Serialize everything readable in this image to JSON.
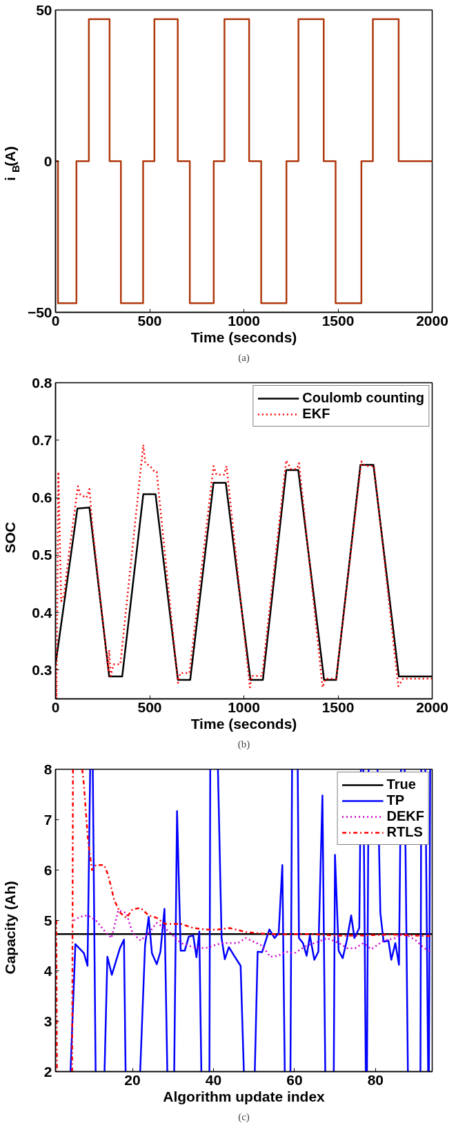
{
  "chart_data": [
    {
      "type": "line",
      "xlabel": "Time (seconds)",
      "ylabel": "i$_{B}$(A)",
      "annotations": [
        "(a)"
      ],
      "xlim": [
        0,
        2000
      ],
      "ylim": [
        -50,
        50
      ],
      "xticks": [
        0,
        500,
        1000,
        1500,
        2000
      ],
      "yticks": [
        -50,
        0,
        50
      ],
      "grid": false,
      "legend": false,
      "series": [
        {
          "color": "#b0380c",
          "line_style": "solid",
          "x": [
            0,
            13,
            13,
            111,
            111,
            177,
            177,
            287,
            287,
            347,
            347,
            465,
            465,
            525,
            525,
            649,
            649,
            713,
            713,
            840,
            840,
            897,
            897,
            1028,
            1028,
            1092,
            1092,
            1226,
            1226,
            1290,
            1290,
            1424,
            1424,
            1487,
            1487,
            1624,
            1624,
            1685,
            1685,
            1822,
            1822,
            2000
          ],
          "values": [
            0,
            0,
            -47,
            -47,
            0,
            0,
            47,
            47,
            0,
            0,
            -47,
            -47,
            0,
            0,
            47,
            47,
            0,
            0,
            -47,
            -47,
            0,
            0,
            47,
            47,
            0,
            0,
            -47,
            -47,
            0,
            0,
            47,
            47,
            0,
            0,
            -47,
            -47,
            0,
            0,
            47,
            47,
            0,
            0
          ]
        }
      ]
    },
    {
      "type": "line",
      "xlabel": "Time (seconds)",
      "ylabel": "SOC",
      "annotations": [
        "(b)"
      ],
      "xlim": [
        0,
        2000
      ],
      "ylim": [
        0.25,
        0.8
      ],
      "xticks": [
        0,
        500,
        1000,
        1500,
        2000
      ],
      "yticks": [
        0.3,
        0.4,
        0.5,
        0.6,
        0.7,
        0.8
      ],
      "grid": false,
      "legend": "top right",
      "series": [
        {
          "name": "Coulomb counting",
          "color": "#000000",
          "line_style": "solid",
          "x": [
            0,
            116,
            180,
            285,
            354,
            466,
            531,
            650,
            715,
            839,
            904,
            1035,
            1101,
            1225,
            1289,
            1426,
            1490,
            1619,
            1688,
            1823,
            2000
          ],
          "values": [
            0.31,
            0.581,
            0.583,
            0.289,
            0.289,
            0.606,
            0.606,
            0.283,
            0.283,
            0.626,
            0.626,
            0.283,
            0.283,
            0.648,
            0.648,
            0.283,
            0.283,
            0.657,
            0.657,
            0.289,
            0.289
          ]
        },
        {
          "name": "EKF",
          "color": "#ff0000",
          "line_style": "dotted",
          "x": [
            0,
            5,
            15,
            30,
            45,
            70,
            119,
            132,
            164,
            180,
            196,
            280,
            285,
            293,
            309,
            344,
            466,
            477,
            502,
            526,
            537,
            650,
            662,
            711,
            839,
            855,
            895,
            908,
            1032,
            1042,
            1097,
            1225,
            1250,
            1281,
            1293,
            1418,
            1434,
            1490,
            1624,
            1643,
            1691,
            1820,
            1845,
            2000
          ],
          "values": [
            0.3,
            0.25,
            0.645,
            0.42,
            0.43,
            0.5,
            0.62,
            0.605,
            0.6,
            0.615,
            0.55,
            0.3,
            0.335,
            0.29,
            0.31,
            0.31,
            0.692,
            0.66,
            0.655,
            0.645,
            0.645,
            0.278,
            0.295,
            0.295,
            0.655,
            0.64,
            0.64,
            0.655,
            0.27,
            0.29,
            0.29,
            0.665,
            0.65,
            0.65,
            0.66,
            0.27,
            0.285,
            0.285,
            0.663,
            0.655,
            0.655,
            0.272,
            0.285,
            0.285
          ]
        }
      ]
    },
    {
      "type": "line",
      "xlabel": "Algorithm update index",
      "ylabel": "Capacity (Ah)",
      "annotations": [
        "(c)"
      ],
      "xlim": [
        1,
        94
      ],
      "ylim": [
        2,
        8
      ],
      "xticks": [
        20,
        40,
        60,
        80
      ],
      "yticks": [
        2,
        3,
        4,
        5,
        6,
        7,
        8
      ],
      "grid": false,
      "legend": "top right",
      "series": [
        {
          "name": "True",
          "color": "#000000",
          "line_style": "solid",
          "x": [
            1,
            94
          ],
          "values": [
            4.73,
            4.73
          ]
        },
        {
          "name": "TP",
          "color": "#0000ff",
          "line_style": "solid",
          "x": [
            4.7,
            5.9,
            8.0,
            8.9,
            9.55,
            null,
            10.2,
            10.9,
            null,
            13.1,
            13.8,
            14.9,
            16.9,
            17.9,
            18.3,
            null,
            21.9,
            23.1,
            24.0,
            24.8,
            26.0,
            26.9,
            27.9,
            28.6,
            null,
            30.3,
            31.0,
            31.9,
            32.9,
            33.9,
            35.0,
            35.8,
            36.5,
            37.0,
            null,
            39.0,
            39.2,
            null,
            41.1,
            42.0,
            42.8,
            43.8,
            45.1,
            46.7,
            47.5,
            null,
            50.2,
            50.9,
            52.0,
            53.8,
            55.1,
            56.1,
            57.0,
            57.6,
            null,
            59.0,
            59.4,
            null,
            60.8,
            61.1,
            62.1,
            63.0,
            63.8,
            64.9,
            65.9,
            66.9,
            67.6,
            null,
            69.7,
            70.0,
            70.9,
            71.9,
            72.9,
            74.0,
            74.8,
            76.0,
            76.4,
            null,
            77.0,
            77.6,
            null,
            77.9,
            78.3,
            null,
            80.5,
            81.2,
            82.0,
            83.2,
            83.9,
            84.9,
            85.8,
            86.3,
            null,
            87.2,
            88.0,
            null,
            91.1,
            91.3,
            null,
            92.3,
            93.0,
            null,
            93.2,
            93.5
          ],
          "values": [
            2,
            4.53,
            4.35,
            4.1,
            8,
            null,
            8,
            2,
            null,
            2,
            4.28,
            3.92,
            4.45,
            4.62,
            2,
            null,
            2,
            4.5,
            5.07,
            4.35,
            4.13,
            4.38,
            5.23,
            2,
            null,
            2,
            7.17,
            4.4,
            4.4,
            4.68,
            4.7,
            4.27,
            4.78,
            2,
            null,
            2,
            8,
            null,
            8,
            4.65,
            4.23,
            4.47,
            4.3,
            4.1,
            2,
            null,
            2,
            4.38,
            4.37,
            4.82,
            4.65,
            4.75,
            6.1,
            2,
            null,
            2,
            8,
            null,
            8,
            4.65,
            4.55,
            4.3,
            4.7,
            4.22,
            4.38,
            7.48,
            2,
            null,
            2,
            6.3,
            4.4,
            4.25,
            4.6,
            5.1,
            4.65,
            4.85,
            8,
            null,
            8,
            2,
            null,
            2,
            8,
            null,
            8,
            5.15,
            4.58,
            4.6,
            4.22,
            4.55,
            4.12,
            8,
            null,
            8,
            2,
            null,
            2,
            8,
            null,
            8,
            2,
            null,
            2,
            8
          ]
        },
        {
          "name": "DEKF",
          "color": "#cc00cc",
          "line_style": "dotted",
          "x": [
            5.5,
            7,
            9,
            11,
            13,
            14.8,
            16.5,
            18.5,
            20,
            22,
            24,
            26,
            28,
            30,
            32,
            35,
            38,
            42,
            46,
            48,
            52,
            54,
            56,
            58,
            60,
            63,
            66,
            68,
            71,
            73,
            75,
            77,
            79,
            82,
            85,
            87,
            90,
            92,
            94
          ],
          "values": [
            5.0,
            5.07,
            5.1,
            5.0,
            4.8,
            4.65,
            5.2,
            5.15,
            4.75,
            4.6,
            4.75,
            4.95,
            4.85,
            4.7,
            4.55,
            4.47,
            4.45,
            4.55,
            4.55,
            4.65,
            4.5,
            4.28,
            4.3,
            4.38,
            4.35,
            4.5,
            4.58,
            4.65,
            4.55,
            4.45,
            4.45,
            4.55,
            4.43,
            4.6,
            4.65,
            4.75,
            4.6,
            4.45,
            4.37
          ]
        },
        {
          "name": "RTLS",
          "color": "#ff0000",
          "line_style": "dashdot",
          "x": [
            1.2,
            1.35,
            null,
            5.1,
            5.3,
            null,
            7.6,
            8,
            9,
            10,
            11,
            13,
            14,
            15.5,
            17,
            18.5,
            20,
            22,
            24,
            26,
            28,
            32,
            35,
            38,
            41,
            44,
            48,
            52,
            56,
            60,
            64,
            70,
            76,
            84,
            90,
            94
          ],
          "values": [
            5.0,
            2,
            null,
            2,
            8,
            null,
            8,
            7.7,
            6.6,
            6.0,
            6.1,
            6.1,
            5.9,
            5.4,
            5.15,
            5.05,
            5.22,
            5.25,
            5.1,
            5.05,
            4.93,
            4.93,
            4.85,
            4.82,
            4.82,
            4.85,
            4.77,
            4.74,
            4.72,
            4.73,
            4.73,
            4.7,
            4.7,
            4.72,
            4.7,
            4.69
          ]
        }
      ]
    }
  ]
}
